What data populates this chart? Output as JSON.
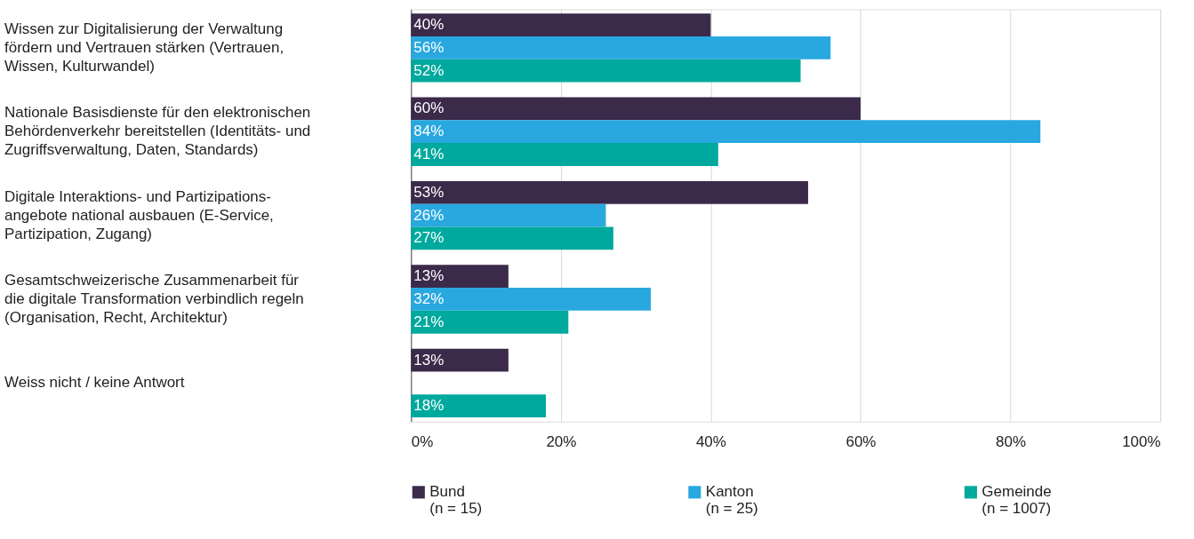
{
  "chart_data": {
    "type": "bar",
    "orientation": "horizontal",
    "categories": [
      "Wissen zur Digitalisierung der Verwaltung\nfördern und Vertrauen stärken (Vertrauen,\nWissen, Kulturwandel)",
      "Nationale Basisdienste für den elektronischen\nBehördenverkehr bereitstellen (Identitäts- und\nZugriffsverwaltung, Daten, Standards)",
      "Digitale Interaktions- und Partizipations-\nangebote national ausbauen (E-Service,\nPartizipation, Zugang)",
      "Gesamtschweizerische Zusammenarbeit für\ndie digitale Transformation verbindlich regeln\n(Organisation, Recht, Architektur)",
      "Weiss nicht / keine Antwort"
    ],
    "series": [
      {
        "name": "Bund\n(n = 15)",
        "color": "#3b2a4a",
        "values": [
          40,
          60,
          53,
          13,
          13
        ],
        "value_labels": [
          "40%",
          "60%",
          "53%",
          "13%",
          "13%"
        ]
      },
      {
        "name": "Kanton\n(n = 25)",
        "color": "#29a8e0",
        "values": [
          56,
          84,
          26,
          32,
          null
        ],
        "value_labels": [
          "56%",
          "84%",
          "26%",
          "32%",
          null
        ]
      },
      {
        "name": "Gemeinde\n(n = 1007)",
        "color": "#00a99d",
        "values": [
          52,
          41,
          27,
          21,
          18
        ],
        "value_labels": [
          "52%",
          "41%",
          "27%",
          "21%",
          "18%"
        ]
      }
    ],
    "xlim": [
      0,
      100
    ],
    "xticks": [
      {
        "value": 0,
        "label": "0%"
      },
      {
        "value": 20,
        "label": "20%"
      },
      {
        "value": 40,
        "label": "40%"
      },
      {
        "value": 60,
        "label": "60%"
      },
      {
        "value": 80,
        "label": "80%"
      },
      {
        "value": 100,
        "label": "100%"
      }
    ],
    "grid": "x",
    "legend": "bottom"
  }
}
